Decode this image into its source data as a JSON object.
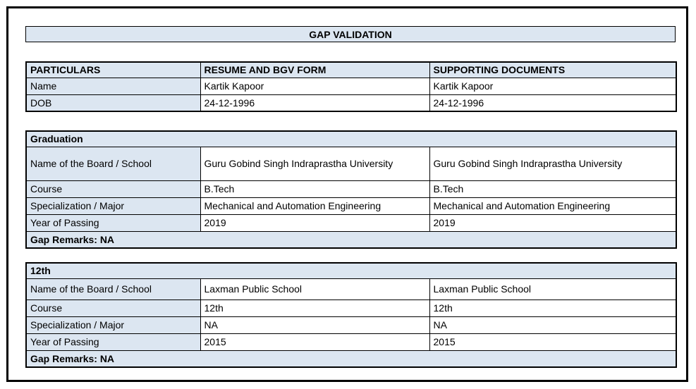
{
  "title": "GAP VALIDATION",
  "colors": {
    "fill": "#dce6f1",
    "border": "#000000",
    "background": "#ffffff"
  },
  "info_table": {
    "columns": [
      "PARTICULARS",
      "RESUME AND BGV FORM",
      "SUPPORTING DOCUMENTS"
    ],
    "rows": [
      {
        "label": "Name",
        "resume": "Kartik Kapoor",
        "supporting": "Kartik Kapoor"
      },
      {
        "label": "DOB",
        "resume": "24-12-1996",
        "supporting": "24-12-1996"
      }
    ]
  },
  "sections": [
    {
      "heading": "Graduation",
      "rows": [
        {
          "label": "Name of the Board / School",
          "resume": "Guru Gobind Singh Indraprastha University",
          "supporting": "Guru Gobind Singh Indraprastha University"
        },
        {
          "label": "Course",
          "resume": "B.Tech",
          "supporting": "B.Tech"
        },
        {
          "label": "Specialization / Major",
          "resume": "Mechanical and Automation Engineering",
          "supporting": "Mechanical and Automation Engineering"
        },
        {
          "label": "Year of Passing",
          "resume": "2019",
          "supporting": "2019"
        }
      ],
      "gap_remarks": "Gap Remarks: NA"
    },
    {
      "heading": "12th",
      "rows": [
        {
          "label": "Name of the Board / School",
          "resume": "Laxman Public School",
          "supporting": "Laxman Public School"
        },
        {
          "label": "Course",
          "resume": "12th",
          "supporting": "12th"
        },
        {
          "label": "Specialization / Major",
          "resume": "NA",
          "supporting": "NA"
        },
        {
          "label": "Year of Passing",
          "resume": "2015",
          "supporting": "2015"
        }
      ],
      "gap_remarks": "Gap Remarks: NA"
    }
  ]
}
